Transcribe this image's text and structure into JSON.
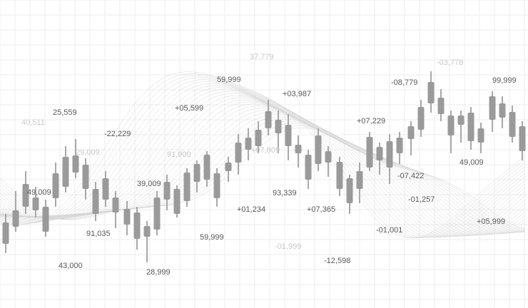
{
  "labels": [
    "37,779",
    "-03,778",
    "-08,779",
    "99,999",
    "59,999",
    "+03,987",
    "+05,599",
    "25,559",
    "40,511",
    "-22,229",
    "+07,229",
    "29,009",
    "91,900",
    "+07,809",
    "49,009",
    "-07,422",
    "39,009",
    "49,009",
    "93,339",
    "-01,257",
    "+01,234",
    "+07,365",
    "+05,999",
    "91,035",
    "-01,001",
    "59,999",
    "-01,999",
    "-12,598",
    "43,000",
    "28,999"
  ]
}
